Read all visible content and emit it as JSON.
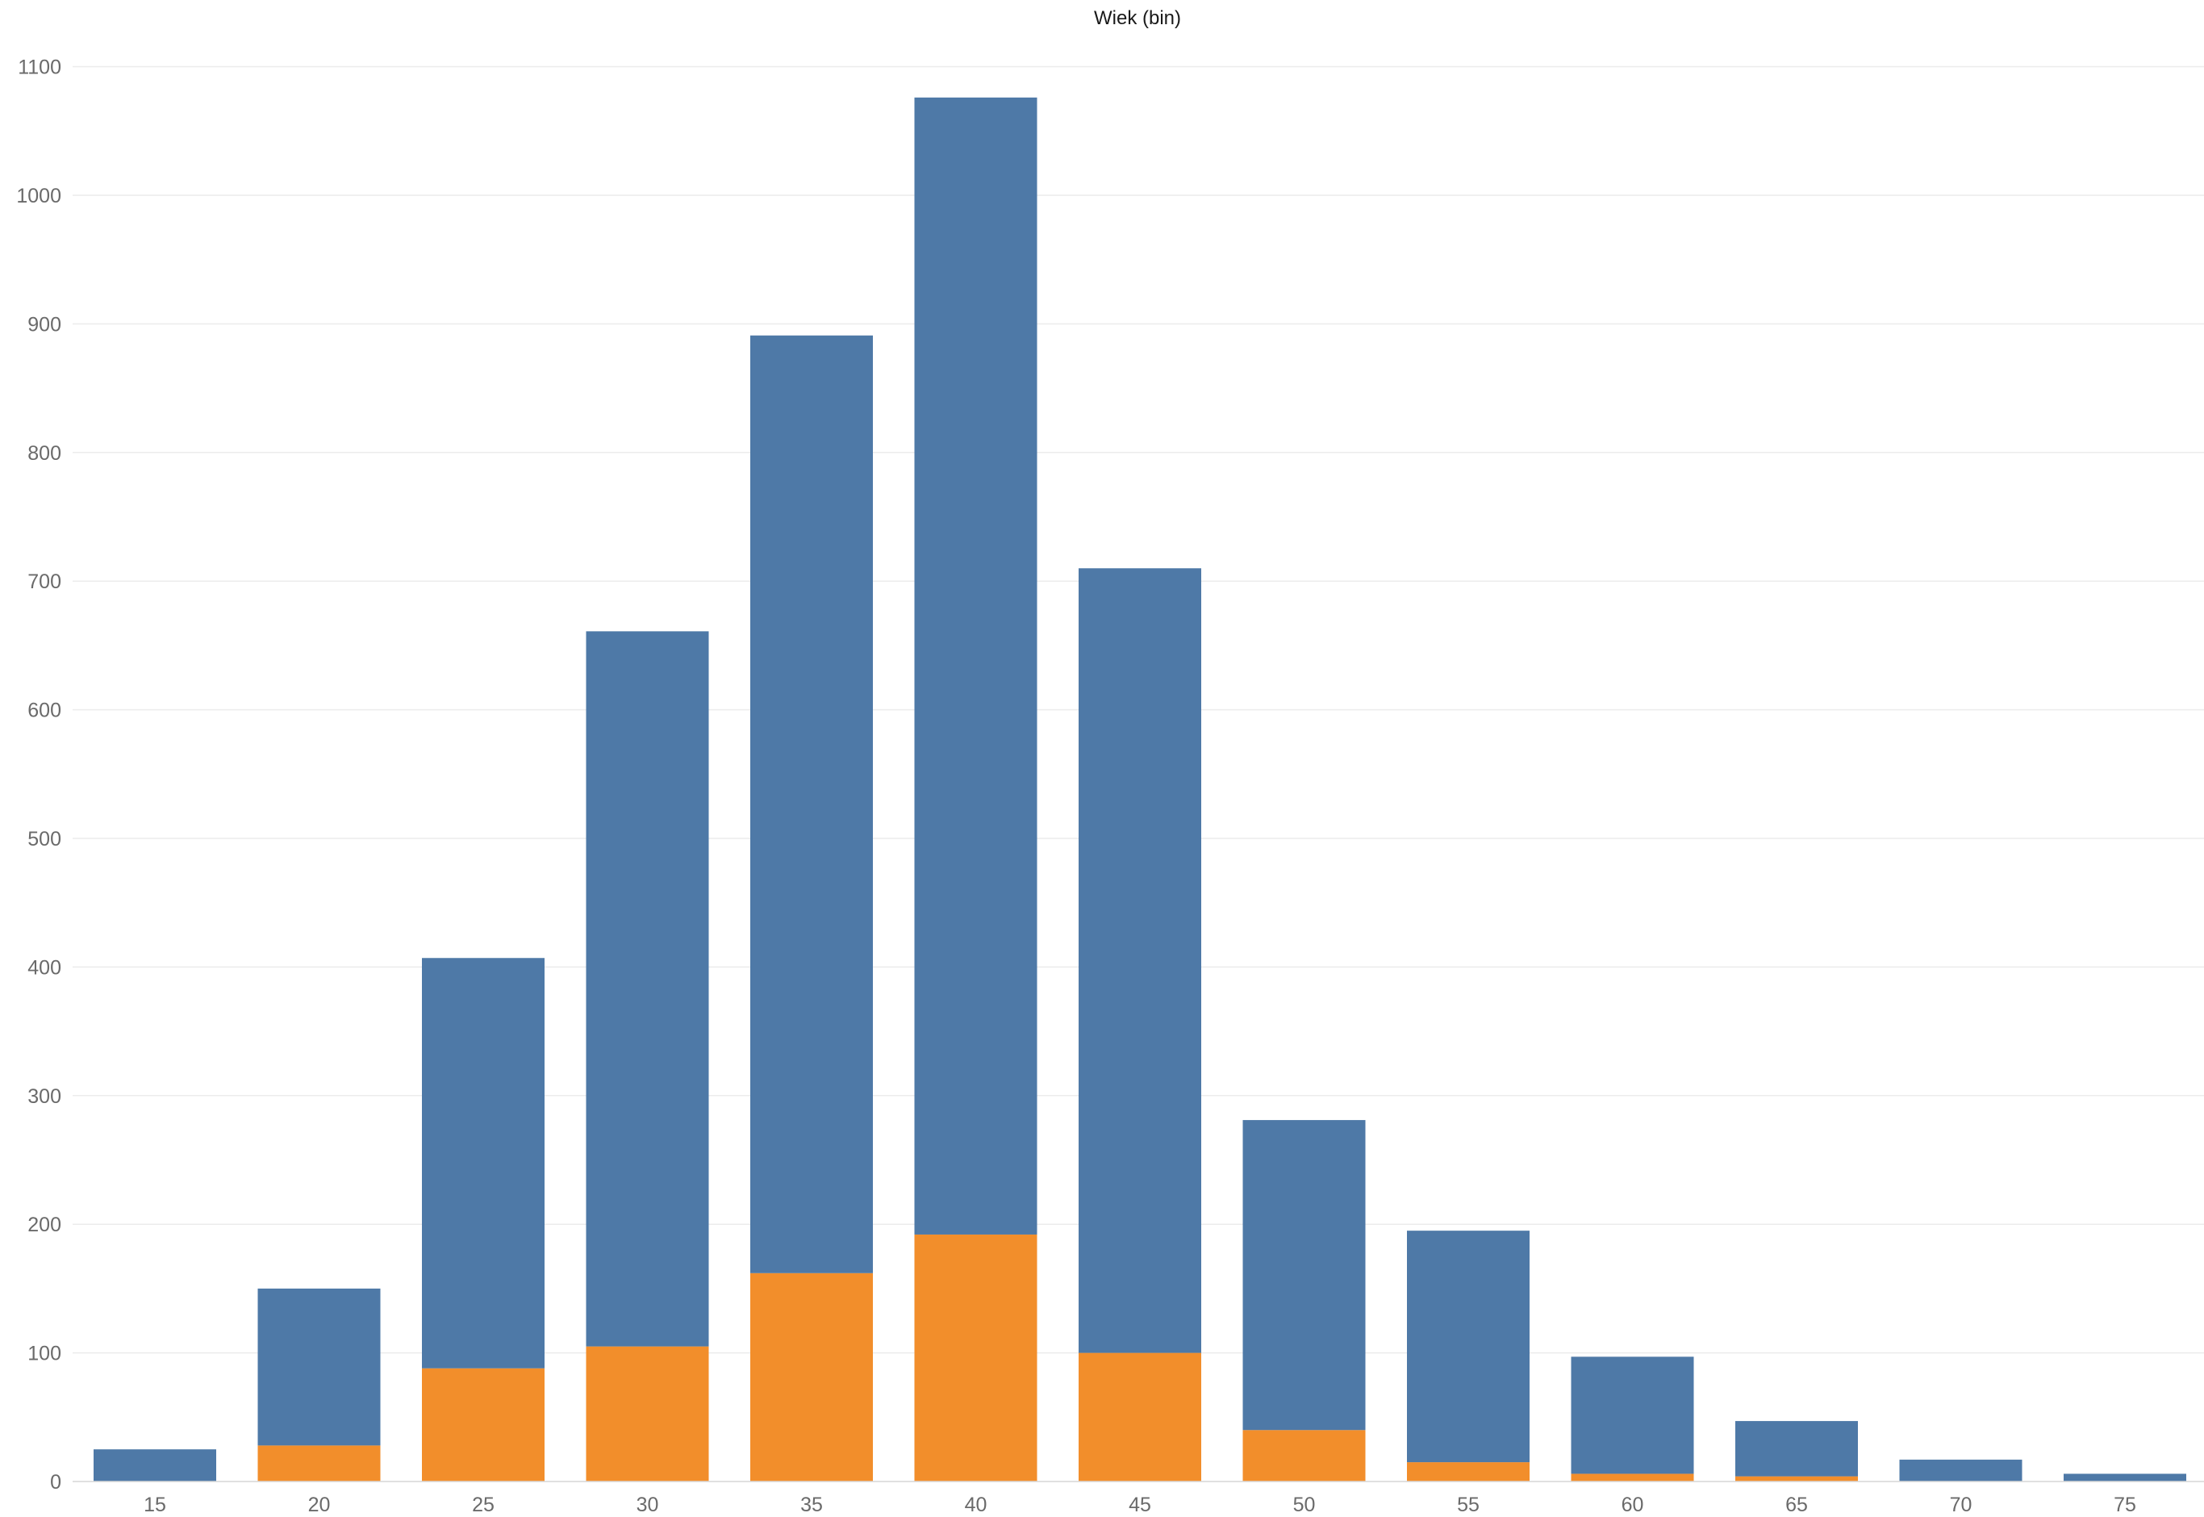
{
  "chart_data": {
    "type": "bar",
    "stacked": true,
    "title": "Wiek (bin)",
    "xlabel": "",
    "ylabel": "",
    "categories": [
      "15",
      "20",
      "25",
      "30",
      "35",
      "40",
      "45",
      "50",
      "55",
      "60",
      "65",
      "70",
      "75"
    ],
    "series": [
      {
        "values": [
          0,
          28,
          88,
          105,
          162,
          192,
          100,
          40,
          15,
          6,
          4,
          0,
          0
        ],
        "color": "#f28e2b"
      },
      {
        "values": [
          25,
          122,
          319,
          556,
          729,
          884,
          610,
          241,
          180,
          91,
          43,
          17,
          6
        ],
        "color": "#4e79a7"
      }
    ],
    "ylim": [
      -5,
      1125
    ],
    "yticks": [
      0,
      100,
      200,
      300,
      400,
      500,
      600,
      700,
      800,
      900,
      1000,
      1100
    ],
    "grid": true,
    "legend": "none"
  }
}
